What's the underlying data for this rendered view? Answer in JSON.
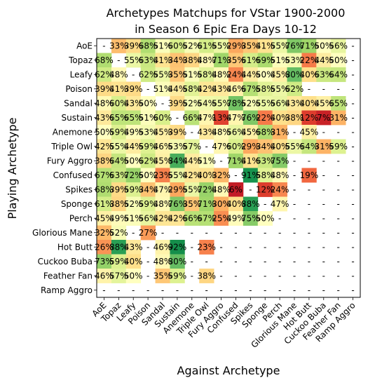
{
  "chart_data": {
    "type": "heatmap",
    "title_lines": [
      "Archetypes Matchups for VStar 1900-2000",
      "in Season 6 Epic Era Days 10-12"
    ],
    "xlabel": "Against Archetype",
    "ylabel": "Playing Archetype",
    "archetypes": [
      "AoE",
      "Topaz",
      "Leafy",
      "Poison",
      "Sandal",
      "Sustain",
      "Anemone",
      "Triple Owl",
      "Fury Aggro",
      "Confused",
      "Spikes",
      "Sponge",
      "Perch",
      "Glorious Mane",
      "Hot Butt",
      "Cuckoo Buba",
      "Feather Fan",
      "Ramp Aggro"
    ],
    "missing_label": "-",
    "value_format": "percent",
    "colormap": "RdYlGn",
    "value_range": [
      0,
      100
    ],
    "grid": false,
    "legend": "none",
    "values": [
      [
        null,
        33,
        39,
        68,
        51,
        60,
        52,
        61,
        55,
        29,
        35,
        41,
        55,
        76,
        71,
        50,
        56,
        null
      ],
      [
        68,
        null,
        55,
        63,
        41,
        34,
        38,
        48,
        71,
        35,
        61,
        69,
        51,
        53,
        22,
        44,
        50,
        null
      ],
      [
        62,
        48,
        null,
        62,
        55,
        35,
        51,
        58,
        48,
        24,
        44,
        50,
        45,
        80,
        40,
        63,
        64,
        null
      ],
      [
        39,
        41,
        39,
        null,
        51,
        44,
        58,
        42,
        43,
        46,
        67,
        58,
        55,
        62,
        null,
        null,
        null,
        null
      ],
      [
        48,
        60,
        43,
        50,
        null,
        39,
        52,
        54,
        55,
        78,
        52,
        55,
        56,
        43,
        40,
        45,
        65,
        null
      ],
      [
        43,
        65,
        65,
        51,
        60,
        null,
        66,
        47,
        13,
        47,
        76,
        22,
        40,
        38,
        12,
        7,
        31,
        null
      ],
      [
        50,
        59,
        49,
        53,
        45,
        39,
        null,
        43,
        48,
        56,
        45,
        68,
        31,
        null,
        45,
        null,
        null,
        null
      ],
      [
        42,
        55,
        44,
        59,
        46,
        53,
        57,
        null,
        47,
        60,
        29,
        34,
        40,
        55,
        64,
        31,
        59,
        null
      ],
      [
        38,
        64,
        50,
        62,
        45,
        84,
        44,
        51,
        null,
        71,
        41,
        63,
        75,
        null,
        null,
        null,
        null,
        null
      ],
      [
        67,
        63,
        72,
        50,
        23,
        55,
        42,
        40,
        32,
        null,
        91,
        58,
        48,
        null,
        19,
        null,
        null,
        null
      ],
      [
        68,
        39,
        59,
        34,
        47,
        29,
        55,
        72,
        48,
        6,
        null,
        12,
        24,
        null,
        null,
        null,
        null,
        null
      ],
      [
        61,
        38,
        52,
        59,
        48,
        76,
        35,
        71,
        30,
        40,
        88,
        null,
        47,
        null,
        null,
        null,
        null,
        null
      ],
      [
        45,
        49,
        51,
        56,
        42,
        42,
        66,
        67,
        25,
        49,
        75,
        50,
        null,
        null,
        null,
        null,
        null,
        null
      ],
      [
        32,
        52,
        null,
        27,
        null,
        null,
        null,
        null,
        null,
        null,
        null,
        null,
        null,
        null,
        null,
        null,
        null,
        null
      ],
      [
        26,
        88,
        43,
        null,
        46,
        92,
        null,
        23,
        null,
        null,
        null,
        null,
        null,
        null,
        null,
        null,
        null,
        null
      ],
      [
        73,
        59,
        40,
        null,
        48,
        80,
        null,
        null,
        null,
        null,
        null,
        null,
        null,
        null,
        null,
        null,
        null,
        null
      ],
      [
        46,
        57,
        50,
        null,
        35,
        59,
        null,
        38,
        null,
        null,
        null,
        null,
        null,
        null,
        null,
        null,
        null,
        null
      ],
      [
        null,
        null,
        null,
        null,
        null,
        null,
        null,
        null,
        null,
        null,
        null,
        null,
        null,
        null,
        null,
        null,
        null,
        null
      ]
    ]
  }
}
